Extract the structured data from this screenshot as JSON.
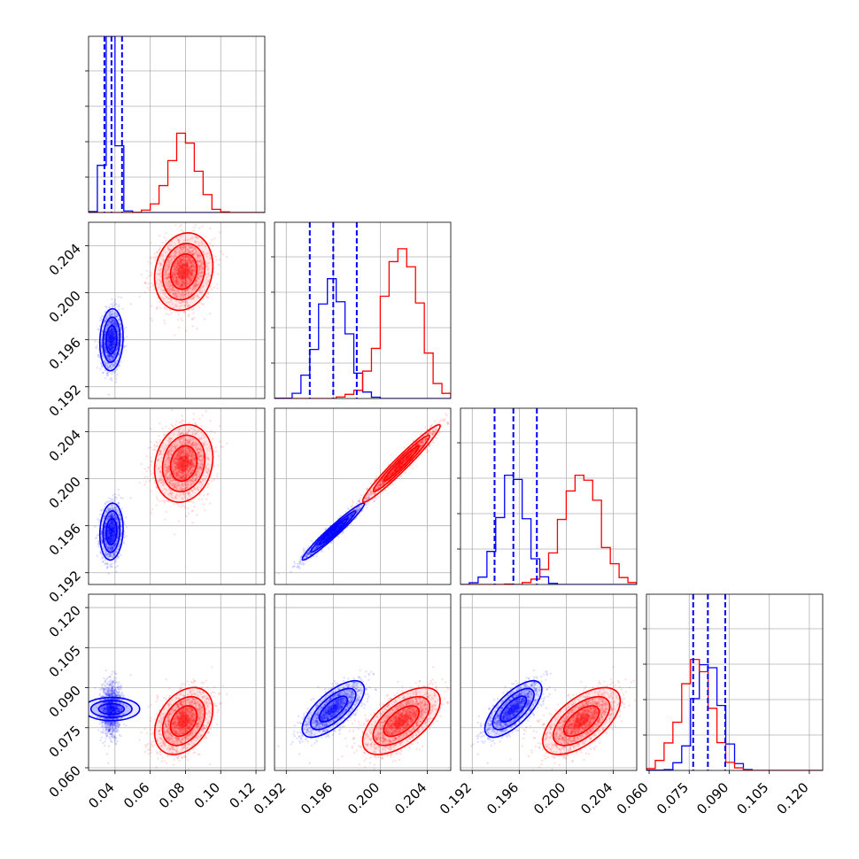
{
  "chart_data": {
    "type": "corner",
    "grid": true,
    "series": [
      {
        "name": "",
        "color": "#0000ff",
        "means": [
          0.038,
          0.196,
          0.1955,
          0.082
        ],
        "sds": [
          0.003,
          0.0012,
          0.0011,
          0.0048
        ],
        "corr": [
          [
            1,
            0.1,
            0.1,
            0
          ],
          [
            0.1,
            1,
            0.97,
            0.7
          ],
          [
            0.1,
            0.97,
            1,
            0.7
          ],
          [
            0,
            0.7,
            0.7,
            1
          ]
        ],
        "hist_peaks": [
          1.0,
          0.68,
          0.62,
          0.6
        ],
        "quantiles": [
          [
            0.034,
            0.038,
            0.044
          ],
          [
            0.194,
            0.196,
            0.198
          ],
          [
            0.1939,
            0.1955,
            0.1975
          ],
          [
            0.0765,
            0.082,
            0.0885
          ]
        ]
      },
      {
        "name": "",
        "color": "#ff0000",
        "means": [
          0.079,
          0.2018,
          0.2013,
          0.0775
        ],
        "sds": [
          0.0075,
          0.0015,
          0.0015,
          0.0057
        ],
        "corr": [
          [
            1,
            0.15,
            0.15,
            0.35
          ],
          [
            0.15,
            1,
            0.97,
            0.6
          ],
          [
            0.15,
            0.97,
            1,
            0.6
          ],
          [
            0.35,
            0.6,
            0.6,
            1
          ]
        ],
        "hist_peaks": [
          0.45,
          0.85,
          0.62,
          0.63
        ]
      }
    ],
    "params": [
      {
        "range": [
          0.025,
          0.125
        ],
        "ticks": [
          0.04,
          0.06,
          0.08,
          0.1,
          0.12
        ],
        "tick_labels": [
          "0.04",
          "0.06",
          "0.08",
          "0.10",
          "0.12"
        ]
      },
      {
        "range": [
          0.191,
          0.206
        ],
        "ticks": [
          0.192,
          0.196,
          0.2,
          0.204
        ],
        "tick_labels": [
          "0.192",
          "0.196",
          "0.200",
          "0.204"
        ]
      },
      {
        "range": [
          0.191,
          0.206
        ],
        "ticks": [
          0.192,
          0.196,
          0.2,
          0.204
        ],
        "tick_labels": [
          "0.192",
          "0.196",
          "0.200",
          "0.204"
        ]
      },
      {
        "range": [
          0.059,
          0.125
        ],
        "ticks": [
          0.06,
          0.075,
          0.09,
          0.105,
          0.12
        ],
        "tick_labels": [
          "0.060",
          "0.075",
          "0.090",
          "0.105",
          "0.120"
        ]
      }
    ],
    "xlabel": "",
    "ylabel": "",
    "title": ""
  }
}
